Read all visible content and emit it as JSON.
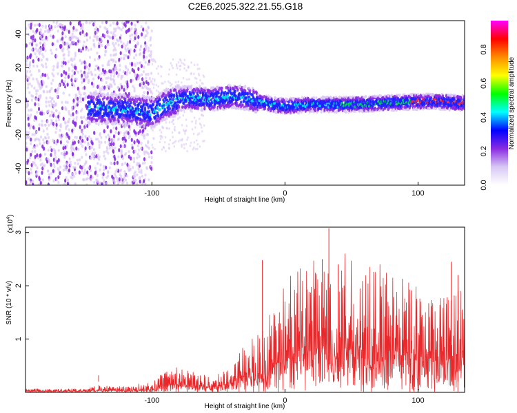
{
  "title": "C2E6.2025.322.21.55.G18",
  "chart_data": [
    {
      "type": "heatmap",
      "xlabel": "Height of straight line (km)",
      "ylabel": "Frequency (Hz)",
      "xlim": [
        -195,
        135
      ],
      "ylim": [
        -50,
        48
      ],
      "xticks": [
        -100,
        0,
        100
      ],
      "yticks": [
        -40,
        -20,
        0,
        20,
        40
      ],
      "ridge": [
        {
          "x": -145,
          "f": -4
        },
        {
          "x": -120,
          "f": -5
        },
        {
          "x": -100,
          "f": -7
        },
        {
          "x": -90,
          "f": -2
        },
        {
          "x": -75,
          "f": 2
        },
        {
          "x": -55,
          "f": 1
        },
        {
          "x": -40,
          "f": 3
        },
        {
          "x": -30,
          "f": 2
        },
        {
          "x": -10,
          "f": -2
        },
        {
          "x": 0,
          "f": -3
        },
        {
          "x": 20,
          "f": -2
        },
        {
          "x": 50,
          "f": -2
        },
        {
          "x": 80,
          "f": -1
        },
        {
          "x": 110,
          "f": 0
        },
        {
          "x": 130,
          "f": -1
        }
      ],
      "colorbar": {
        "label": "Normalized spectral amplitude",
        "range": [
          0,
          0.97
        ],
        "ticks": [
          "0.0",
          "0.2",
          "0.4",
          "0.6",
          "0.8"
        ],
        "colors": [
          "#ffffff",
          "#d8c8f4",
          "#8a2be2",
          "#0000ff",
          "#00ffff",
          "#00ff00",
          "#ffff00",
          "#ff8c00",
          "#ff0000",
          "#ff00ff"
        ]
      },
      "colors": {
        "faint": "#dcc8f5",
        "mid": "#8a2be2",
        "strong": "#2020ff",
        "peak": "#00e5e5"
      }
    },
    {
      "type": "line",
      "xlabel": "Height of straight line (km)",
      "ylabel": "SNR (10 * v/v)",
      "y_multiplier": "(x10",
      "y_multiplier_exp": "4",
      "y_multiplier_close": ")",
      "xlim": [
        -195,
        135
      ],
      "ylim": [
        0,
        3.1
      ],
      "xticks": [
        -100,
        0,
        100
      ],
      "yticks": [
        1,
        2,
        3
      ],
      "series": [
        {
          "color": "#e8282a",
          "envelope": [
            {
              "x": -195,
              "v": 0.05
            },
            {
              "x": -150,
              "v": 0.05
            },
            {
              "x": -140,
              "v": 0.1
            },
            {
              "x": -120,
              "v": 0.08
            },
            {
              "x": -100,
              "v": 0.15
            },
            {
              "x": -85,
              "v": 0.35
            },
            {
              "x": -70,
              "v": 0.3
            },
            {
              "x": -55,
              "v": 0.2
            },
            {
              "x": -40,
              "v": 0.35
            },
            {
              "x": -30,
              "v": 0.7
            },
            {
              "x": -20,
              "v": 0.8
            },
            {
              "x": 0,
              "v": 1.5
            },
            {
              "x": 20,
              "v": 1.8
            },
            {
              "x": 40,
              "v": 1.9
            },
            {
              "x": 60,
              "v": 1.9
            },
            {
              "x": 80,
              "v": 1.6
            },
            {
              "x": 100,
              "v": 1.5
            },
            {
              "x": 120,
              "v": 1.3
            },
            {
              "x": 135,
              "v": 1.4
            }
          ],
          "spikes": [
            {
              "x": -140,
              "v": 0.32
            },
            {
              "x": -17,
              "v": 2.48
            },
            {
              "x": 28,
              "v": 2.5
            },
            {
              "x": 33,
              "v": 3.08
            },
            {
              "x": 40,
              "v": 2.4
            },
            {
              "x": 125,
              "v": 2.45
            },
            {
              "x": 130,
              "v": 2.2
            }
          ]
        }
      ]
    }
  ]
}
